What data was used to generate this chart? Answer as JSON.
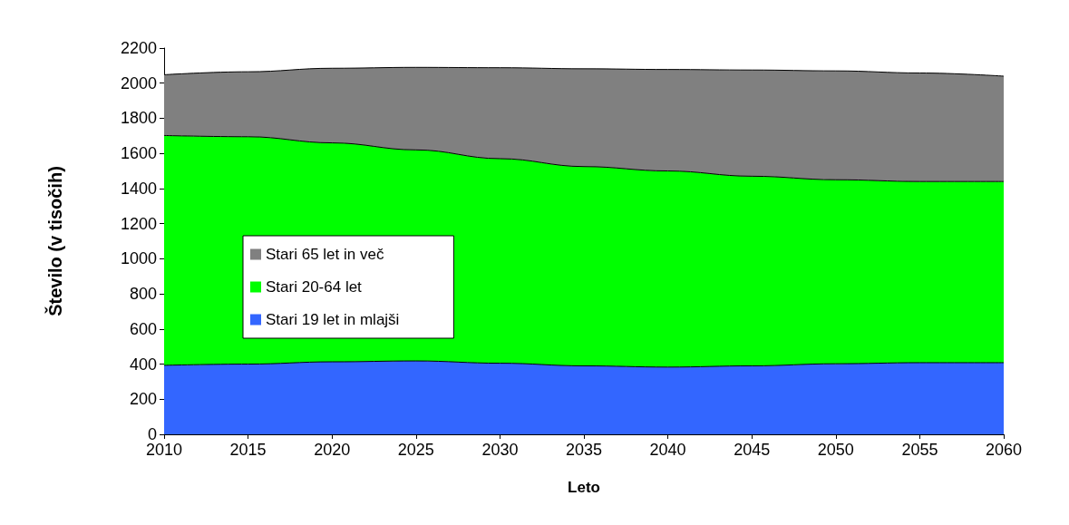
{
  "chart_data": {
    "type": "area",
    "stacked": true,
    "xlabel": "Leto",
    "ylabel": "Število (v tisočih)",
    "categories": [
      "2010",
      "2015",
      "2020",
      "2025",
      "2030",
      "2035",
      "2040",
      "2045",
      "2050",
      "2055",
      "2060"
    ],
    "ylim": [
      0,
      2200
    ],
    "yticks": [
      0,
      200,
      400,
      600,
      800,
      1000,
      1200,
      1400,
      1600,
      1800,
      2000,
      2200
    ],
    "grid": false,
    "legend": "left",
    "series": [
      {
        "name": "Stari 19 let in mlajši",
        "color": "#3366ff",
        "values": [
          393,
          400,
          413,
          418,
          405,
          390,
          383,
          390,
          402,
          408,
          408
        ]
      },
      {
        "name": "Stari 20-64 let",
        "color": "#00ff00",
        "values": [
          1309,
          1295,
          1247,
          1202,
          1165,
          1135,
          1117,
          1080,
          1048,
          1032,
          1032
        ]
      },
      {
        "name": "Stari 65 let in več",
        "color": "#808080",
        "values": [
          346,
          370,
          425,
          470,
          518,
          557,
          578,
          605,
          620,
          618,
          600
        ]
      }
    ]
  }
}
